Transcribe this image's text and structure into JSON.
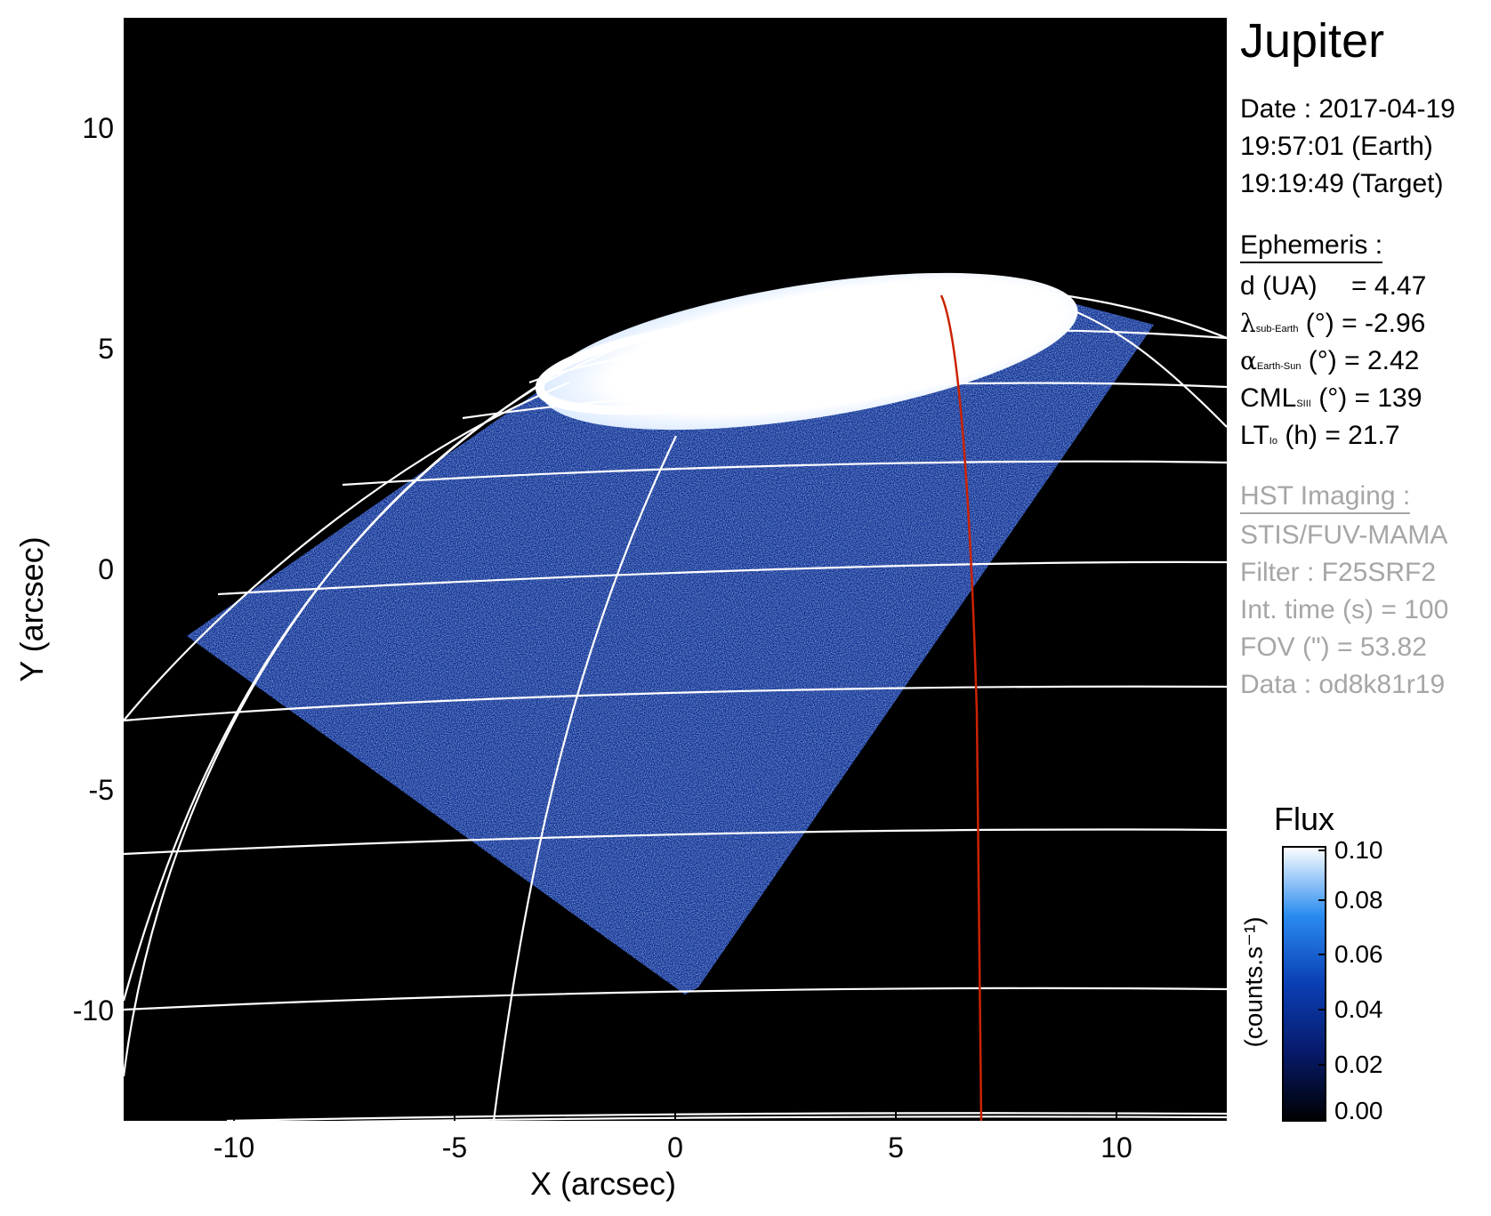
{
  "title": "Jupiter",
  "date": {
    "line1": "Date : 2017-04-19",
    "line2": "19:57:01 (Earth)",
    "line3": "19:19:49 (Target)"
  },
  "ephemeris": {
    "heading": "Ephemeris :",
    "d_label": "d (UA)",
    "d_value": "= 4.47",
    "lat_symbol": "λ",
    "lat_sub": "sub-Earth",
    "lat_rest": "(°) = -2.96",
    "phase_symbol": "α",
    "phase_sub": "Earth-Sun",
    "phase_rest": "(°) = 2.42",
    "cml_label": "CML",
    "cml_sub": "SIII",
    "cml_rest": "(°) = 139",
    "lt_label": "LT",
    "lt_sub": "Io",
    "lt_rest": "(h) = 21.7"
  },
  "hst": {
    "heading": "HST Imaging :",
    "instrument": "STIS/FUV-MAMA",
    "filter": "Filter : F25SRF2",
    "int_time": "Int. time (s) = 100",
    "fov": "FOV (\") = 53.82",
    "data": "Data : od8k81r19"
  },
  "axes": {
    "xlabel": "X (arcsec)",
    "ylabel": "Y (arcsec)",
    "xticks": [
      "-10",
      "-5",
      "0",
      "5",
      "10"
    ],
    "yticks": [
      "10",
      "5",
      "0",
      "-5",
      "-10"
    ],
    "xlim": [
      -12.5,
      12.5
    ],
    "ylim": [
      -12.5,
      12.5
    ]
  },
  "colorbar": {
    "title": "Flux",
    "unit": "(counts.s⁻¹)",
    "ticks": [
      "0.10",
      "0.08",
      "0.06",
      "0.04",
      "0.02",
      "0.00"
    ],
    "range": [
      0.0,
      0.1
    ]
  },
  "colors": {
    "background": "#000000",
    "grid": "#ffffff",
    "meridian_highlight": "#cc2200",
    "emission_low": "#0a1a6e",
    "emission_mid": "#2a6cff",
    "emission_high": "#ffffff",
    "hst_text": "#a6a6a6"
  }
}
